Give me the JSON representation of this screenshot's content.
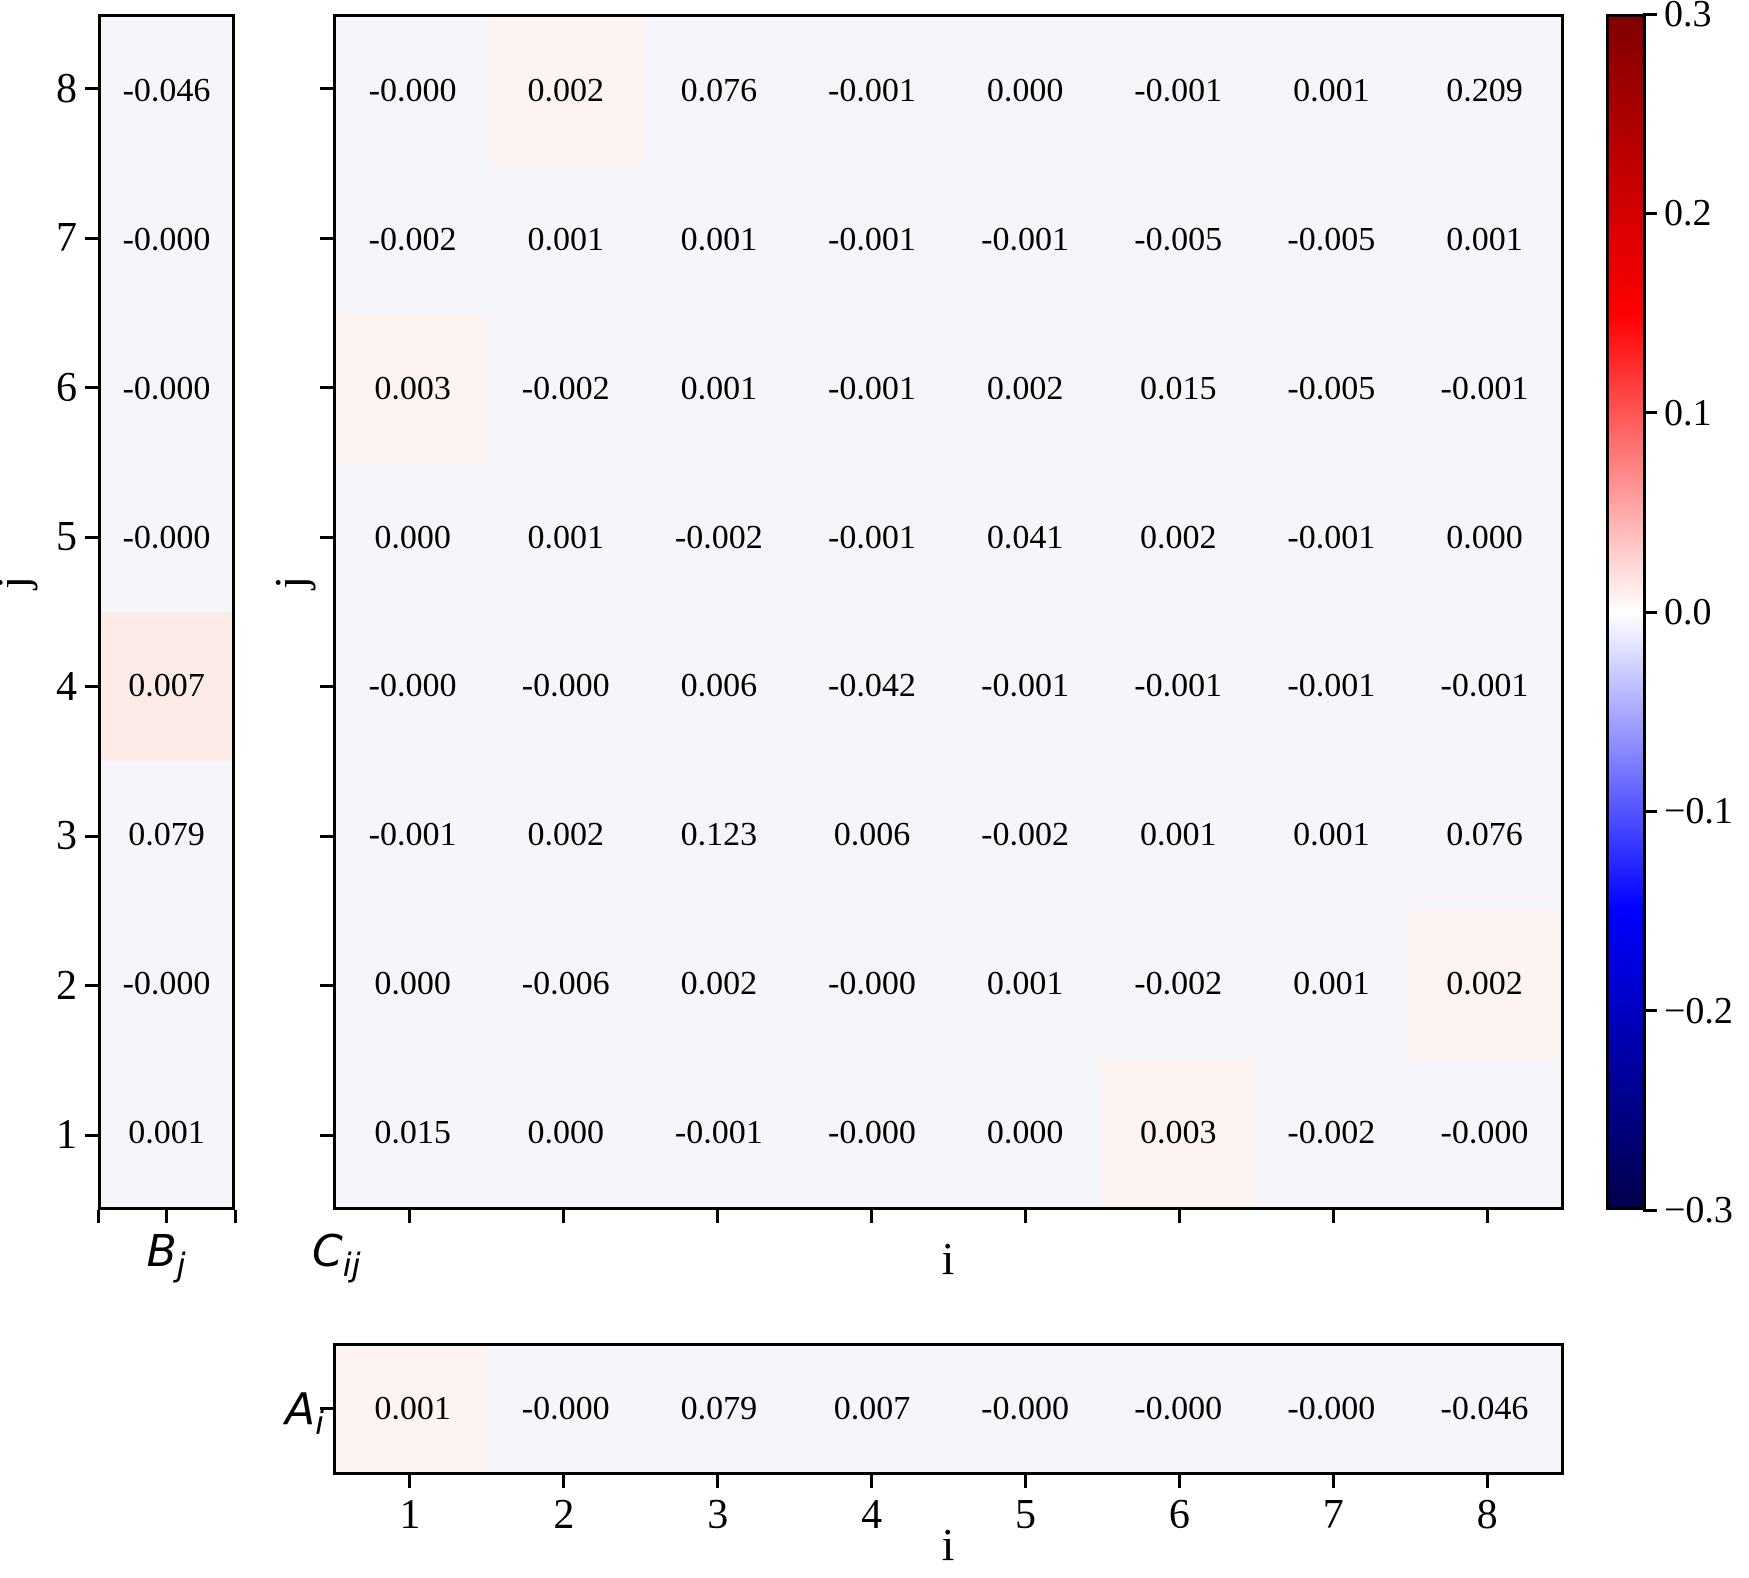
{
  "colors": {
    "background": "#ffffff",
    "cell_base": "#f6f6fa",
    "tint_faint": "#fdf3f0",
    "tint_medium": "#fcebe6",
    "axis": "#000000",
    "text": "#000000"
  },
  "left_heatmap": {
    "name_label": "B",
    "name_sub": "j",
    "ylabel": "j",
    "yticks": [
      "8",
      "7",
      "6",
      "5",
      "4",
      "3",
      "2",
      "1"
    ],
    "values": [
      "-0.046",
      "-0.000",
      "-0.000",
      "-0.000",
      "0.007",
      "0.079",
      "-0.000",
      "0.001"
    ],
    "tints": [
      0,
      0,
      0,
      0,
      2,
      0,
      0,
      0
    ]
  },
  "main_heatmap": {
    "name_label": "C",
    "name_sub": "ij",
    "xlabel": "i",
    "ylabel": "j",
    "rows": [
      [
        "-0.000",
        "0.002",
        "0.076",
        "-0.001",
        "0.000",
        "-0.001",
        "0.001",
        "0.209"
      ],
      [
        "-0.002",
        "0.001",
        "0.001",
        "-0.001",
        "-0.001",
        "-0.005",
        "-0.005",
        "0.001"
      ],
      [
        "0.003",
        "-0.002",
        "0.001",
        "-0.001",
        "0.002",
        "0.015",
        "-0.005",
        "-0.001"
      ],
      [
        "0.000",
        "0.001",
        "-0.002",
        "-0.001",
        "0.041",
        "0.002",
        "-0.001",
        "0.000"
      ],
      [
        "-0.000",
        "-0.000",
        "0.006",
        "-0.042",
        "-0.001",
        "-0.001",
        "-0.001",
        "-0.001"
      ],
      [
        "-0.001",
        "0.002",
        "0.123",
        "0.006",
        "-0.002",
        "0.001",
        "0.001",
        "0.076"
      ],
      [
        "0.000",
        "-0.006",
        "0.002",
        "-0.000",
        "0.001",
        "-0.002",
        "0.001",
        "0.002"
      ],
      [
        "0.015",
        "0.000",
        "-0.001",
        "-0.000",
        "0.000",
        "0.003",
        "-0.002",
        "-0.000"
      ]
    ],
    "tints": [
      [
        0,
        1,
        0,
        0,
        0,
        0,
        0,
        0
      ],
      [
        0,
        0,
        0,
        0,
        0,
        0,
        0,
        0
      ],
      [
        1,
        0,
        0,
        0,
        0,
        0,
        0,
        0
      ],
      [
        0,
        0,
        0,
        0,
        0,
        0,
        0,
        0
      ],
      [
        0,
        0,
        0,
        0,
        0,
        0,
        0,
        0
      ],
      [
        0,
        0,
        0,
        0,
        0,
        0,
        0,
        0
      ],
      [
        0,
        0,
        0,
        0,
        0,
        0,
        0,
        1
      ],
      [
        0,
        0,
        0,
        0,
        0,
        1,
        0,
        0
      ]
    ]
  },
  "bottom_heatmap": {
    "name_label": "A",
    "name_sub": "i",
    "xlabel": "i",
    "xticks": [
      "1",
      "2",
      "3",
      "4",
      "5",
      "6",
      "7",
      "8"
    ],
    "values": [
      "0.001",
      "-0.000",
      "0.079",
      "0.007",
      "-0.000",
      "-0.000",
      "-0.000",
      "-0.046"
    ],
    "tints": [
      1,
      0,
      0,
      0,
      0,
      0,
      0,
      0
    ]
  },
  "colorbar": {
    "tick_labels": [
      "0.3",
      "0.2",
      "0.1",
      "0.0",
      "−0.1",
      "−0.2",
      "−0.3"
    ],
    "gradient_stops": [
      "#800000",
      "#ff0000",
      "#ffffff",
      "#0000ff",
      "#00004c"
    ],
    "vmin": -0.3,
    "vmax": 0.3
  },
  "chart_data": {
    "type": "heatmap",
    "colormap": "seismic (dark blue → blue → white → red → dark red)",
    "vmin": -0.3,
    "vmax": 0.3,
    "legend_position": "right colorbar",
    "panels": [
      {
        "title": "B_j",
        "layout": "single column, j = 1 (bottom) to 8 (top)",
        "ylabel": "j",
        "j": [
          1,
          2,
          3,
          4,
          5,
          6,
          7,
          8
        ],
        "values": [
          0.001,
          -0.0,
          0.079,
          0.007,
          -0.0,
          -0.0,
          -0.0,
          -0.046
        ]
      },
      {
        "title": "C_ij",
        "layout": "8x8 matrix, i = 1..8 left to right, j = 1 (bottom) to 8 (top)",
        "xlabel": "i",
        "ylabel": "j",
        "i": [
          1,
          2,
          3,
          4,
          5,
          6,
          7,
          8
        ],
        "j": [
          1,
          2,
          3,
          4,
          5,
          6,
          7,
          8
        ],
        "rows_j1_to_j8": [
          [
            0.015,
            0.0,
            -0.001,
            -0.0,
            0.0,
            0.003,
            -0.002,
            -0.0
          ],
          [
            0.0,
            -0.006,
            0.002,
            -0.0,
            0.001,
            -0.002,
            0.001,
            0.002
          ],
          [
            -0.001,
            0.002,
            0.123,
            0.006,
            -0.002,
            0.001,
            0.001,
            0.076
          ],
          [
            -0.0,
            -0.0,
            0.006,
            -0.042,
            -0.001,
            -0.001,
            -0.001,
            -0.001
          ],
          [
            0.0,
            0.001,
            -0.002,
            -0.001,
            0.041,
            0.002,
            -0.001,
            0.0
          ],
          [
            0.003,
            -0.002,
            0.001,
            -0.001,
            0.002,
            0.015,
            -0.005,
            -0.001
          ],
          [
            -0.002,
            0.001,
            0.001,
            -0.001,
            -0.001,
            -0.005,
            -0.005,
            0.001
          ],
          [
            -0.0,
            0.002,
            0.076,
            -0.001,
            0.0,
            -0.001,
            0.001,
            0.209
          ]
        ]
      },
      {
        "title": "A_i",
        "layout": "single row, i = 1..8 left to right",
        "xlabel": "i",
        "i": [
          1,
          2,
          3,
          4,
          5,
          6,
          7,
          8
        ],
        "values": [
          0.001,
          -0.0,
          0.079,
          0.007,
          -0.0,
          -0.0,
          -0.0,
          -0.046
        ]
      }
    ],
    "colorbar_ticks": [
      0.3,
      0.2,
      0.1,
      0.0,
      -0.1,
      -0.2,
      -0.3
    ]
  }
}
